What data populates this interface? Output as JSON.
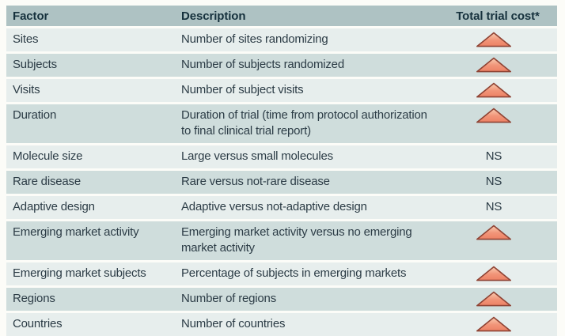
{
  "header": {
    "factor": "Factor",
    "description": "Description",
    "total_trial_cost": "Total trial cost*"
  },
  "rows": [
    {
      "factor": "Sites",
      "description": "Number of sites randomizing",
      "total_trial_cost": "triangle-up"
    },
    {
      "factor": "Subjects",
      "description": "Number of subjects randomized",
      "total_trial_cost": "triangle-up"
    },
    {
      "factor": "Visits",
      "description": "Number of subject visits",
      "total_trial_cost": "triangle-up"
    },
    {
      "factor": "Duration",
      "description": "Duration of trial (time from protocol authorization to final clinical trial report)",
      "total_trial_cost": "triangle-up"
    },
    {
      "factor": "Molecule size",
      "description": "Large versus small molecules",
      "total_trial_cost": "NS"
    },
    {
      "factor": "Rare disease",
      "description": "Rare versus not-rare disease",
      "total_trial_cost": "NS"
    },
    {
      "factor": "Adaptive design",
      "description": "Adaptive versus not-adaptive design",
      "total_trial_cost": "NS"
    },
    {
      "factor": "Emerging market activity",
      "description": "Emerging market activity versus no emerging market activity",
      "total_trial_cost": "triangle-up"
    },
    {
      "factor": "Emerging market subjects",
      "description": "Percentage of subjects in emerging markets",
      "total_trial_cost": "triangle-up"
    },
    {
      "factor": "Regions",
      "description": "Number of regions",
      "total_trial_cost": "triangle-up"
    },
    {
      "factor": "Countries",
      "description": "Number of countries",
      "total_trial_cost": "triangle-up"
    }
  ],
  "icons": {
    "cost_increase": "triangle-up-icon",
    "not_significant_label": "NS"
  },
  "colors": {
    "page_bg": "#FCFCF8",
    "header_bg": "#AEC2C3",
    "header_text": "#16313D",
    "row_light_bg": "#E7EEED",
    "row_dark_bg": "#CFDDDC",
    "text": "#2C3C46",
    "triangle_fill": "#F09478",
    "triangle_fill_highlight": "#F9CBB0",
    "triangle_border": "#8E4334"
  }
}
